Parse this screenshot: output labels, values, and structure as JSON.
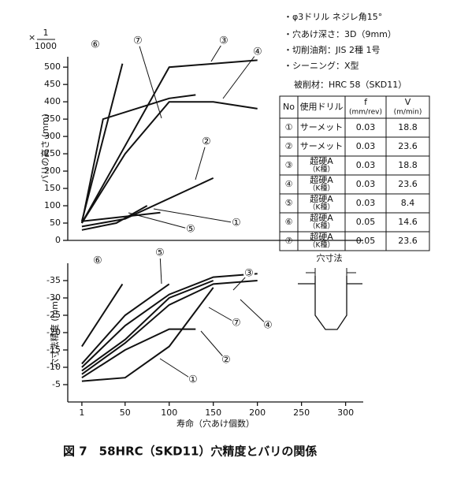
{
  "chart_data": [
    {
      "type": "line",
      "y_label": "バリの高さ (mm)",
      "y_unit": {
        "prefix": "×",
        "numerator": "1",
        "denominator": "1000"
      },
      "xlim": [
        -15,
        320
      ],
      "ylim": [
        0,
        530
      ],
      "yticks": [
        0,
        50,
        100,
        150,
        200,
        250,
        300,
        350,
        400,
        450,
        500
      ],
      "series": [
        {
          "name": "①",
          "color": "#111",
          "x": [
            1,
            90
          ],
          "values": [
            55,
            80
          ]
        },
        {
          "name": "②",
          "color": "#111",
          "x": [
            1,
            50,
            150
          ],
          "values": [
            40,
            62,
            180
          ]
        },
        {
          "name": "③",
          "color": "#111",
          "x": [
            1,
            100,
            200
          ],
          "values": [
            50,
            500,
            520
          ]
        },
        {
          "name": "④",
          "color": "#111",
          "x": [
            1,
            50,
            100,
            150,
            200
          ],
          "values": [
            50,
            250,
            400,
            400,
            380
          ]
        },
        {
          "name": "⑤",
          "color": "#111",
          "x": [
            1,
            40,
            75
          ],
          "values": [
            30,
            50,
            100
          ]
        },
        {
          "name": "⑥",
          "color": "#111",
          "x": [
            1,
            47
          ],
          "values": [
            55,
            510
          ]
        },
        {
          "name": "⑦",
          "color": "#111",
          "x": [
            1,
            25,
            100,
            130
          ],
          "values": [
            50,
            350,
            410,
            420
          ]
        }
      ]
    },
    {
      "type": "line",
      "y_label": "穴寸法精度 (mm)",
      "x_label": "寿命（穴あけ個数）",
      "xlim": [
        -15,
        320
      ],
      "ylim": [
        0,
        -40
      ],
      "xticks": [
        1,
        50,
        100,
        150,
        200,
        250,
        300
      ],
      "yticks": [
        -5,
        -10,
        -15,
        -20,
        -25,
        -30,
        -35
      ],
      "series": [
        {
          "name": "①",
          "color": "#111",
          "x": [
            1,
            50,
            100,
            150
          ],
          "values": [
            -6,
            -7,
            -16,
            -33
          ]
        },
        {
          "name": "②",
          "color": "#111",
          "x": [
            1,
            50,
            100,
            130
          ],
          "values": [
            -7,
            -15,
            -21,
            -21
          ]
        },
        {
          "name": "③",
          "color": "#111",
          "x": [
            1,
            50,
            100,
            150,
            200
          ],
          "values": [
            -10,
            -22,
            -31,
            -36,
            -37
          ]
        },
        {
          "name": "④",
          "color": "#111",
          "x": [
            1,
            50,
            100,
            150,
            200
          ],
          "values": [
            -8,
            -17,
            -28,
            -34,
            -35
          ]
        },
        {
          "name": "⑤",
          "color": "#111",
          "x": [
            1,
            50,
            100
          ],
          "values": [
            -11,
            -25,
            -34
          ]
        },
        {
          "name": "⑥",
          "color": "#111",
          "x": [
            1,
            47
          ],
          "values": [
            -16,
            -34
          ]
        },
        {
          "name": "⑦",
          "color": "#111",
          "x": [
            1,
            50,
            100,
            150
          ],
          "values": [
            -9,
            -18,
            -30,
            -35
          ]
        }
      ]
    }
  ],
  "notes": [
    "・φ3ドリル ネジレ角15°",
    "・穴あけ深さ：3D（9mm）",
    "・切削油剤：JIS 2種 1号",
    "・シーニング：X型"
  ],
  "material": "被削材：HRC 58（SKD11）",
  "table": {
    "header": [
      "No",
      "使用ドリル",
      [
        "f",
        "(mm/rev)"
      ],
      [
        "V",
        "(m/min)"
      ]
    ],
    "rows": [
      [
        "①",
        [
          "サーメット"
        ],
        "0.03",
        "18.8"
      ],
      [
        "②",
        [
          "サーメット"
        ],
        "0.03",
        "23.6"
      ],
      [
        "③",
        [
          "超硬A",
          "（K種）"
        ],
        "0.03",
        "18.8"
      ],
      [
        "④",
        [
          "超硬A",
          "（K種）"
        ],
        "0.03",
        "23.6"
      ],
      [
        "⑤",
        [
          "超硬A",
          "（K種）"
        ],
        "0.03",
        "8.4"
      ],
      [
        "⑥",
        [
          "超硬A",
          "（K種）"
        ],
        "0.05",
        "14.6"
      ],
      [
        "⑦",
        [
          "超硬A",
          "（K種）"
        ],
        "0.05",
        "23.6"
      ]
    ]
  },
  "diagram": {
    "label": "穴寸法"
  },
  "caption": "図 7　58HRC（SKD11）穴精度とバリの関係"
}
